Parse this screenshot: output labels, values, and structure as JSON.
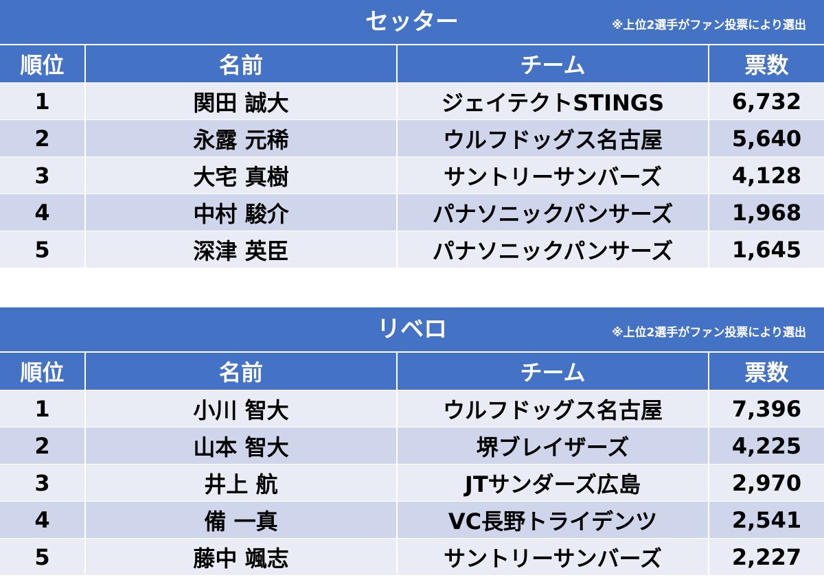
{
  "sections": [
    {
      "title": "セッター",
      "note": "※上位2選手がファン投票により選出",
      "headers": {
        "rank": "順位",
        "name": "名前",
        "team": "チーム",
        "votes": "票数"
      },
      "rows": [
        {
          "rank": "1",
          "name": "関田 誠大",
          "team": "ジェイテクトSTINGS",
          "votes": "6,732"
        },
        {
          "rank": "2",
          "name": "永露 元稀",
          "team": "ウルフドッグス名古屋",
          "votes": "5,640"
        },
        {
          "rank": "3",
          "name": "大宅 真樹",
          "team": "サントリーサンバーズ",
          "votes": "4,128"
        },
        {
          "rank": "4",
          "name": "中村 駿介",
          "team": "パナソニックパンサーズ",
          "votes": "1,968"
        },
        {
          "rank": "5",
          "name": "深津 英臣",
          "team": "パナソニックパンサーズ",
          "votes": "1,645"
        }
      ]
    },
    {
      "title": "リベロ",
      "note": "※上位2選手がファン投票により選出",
      "headers": {
        "rank": "順位",
        "name": "名前",
        "team": "チーム",
        "votes": "票数"
      },
      "rows": [
        {
          "rank": "1",
          "name": "小川 智大",
          "team": "ウルフドッグス名古屋",
          "votes": "7,396"
        },
        {
          "rank": "2",
          "name": "山本 智大",
          "team": "堺ブレイザーズ",
          "votes": "4,225"
        },
        {
          "rank": "3",
          "name": "井上 航",
          "team": "JTサンダーズ広島",
          "votes": "2,970"
        },
        {
          "rank": "4",
          "name": "備 一真",
          "team": "VC長野トライデンツ",
          "votes": "2,541"
        },
        {
          "rank": "5",
          "name": "藤中 颯志",
          "team": "サントリーサンバーズ",
          "votes": "2,227"
        }
      ]
    }
  ],
  "colors": {
    "header_bg": "#4472c4",
    "row_odd_bg": "#e9ebf5",
    "row_even_bg": "#cfd5ea"
  }
}
